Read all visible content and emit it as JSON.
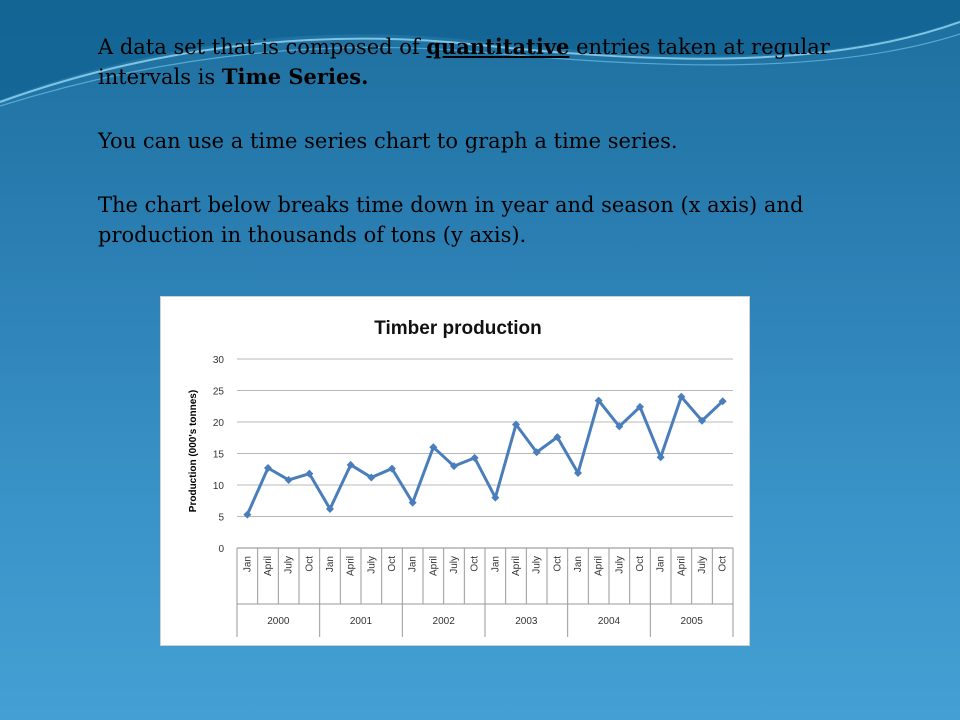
{
  "slide": {
    "para1": {
      "prefix": "A data set that is composed of ",
      "emph": "quantitative",
      "middle": " entries taken at regular intervals is ",
      "term": "Time Series."
    },
    "para2": "You can use a time series chart to graph a time series.",
    "para3": "The chart below breaks time down in year and season (x axis) and production in thousands of tons (y axis)."
  },
  "chart_data": {
    "type": "line",
    "title": "Timber production",
    "ylabel": "Production (000's tonnes)",
    "xlabel": "",
    "ylim": [
      0,
      30
    ],
    "yticks": [
      0,
      5,
      10,
      15,
      20,
      25,
      30
    ],
    "grid": true,
    "color": "#4a7ebb",
    "years": [
      "2000",
      "2001",
      "2002",
      "2003",
      "2004",
      "2005"
    ],
    "seasons": [
      "Jan",
      "April",
      "July",
      "Oct"
    ],
    "values": [
      5.3,
      12.7,
      10.8,
      11.8,
      6.2,
      13.2,
      11.2,
      12.6,
      7.2,
      16.0,
      13.0,
      14.3,
      8.0,
      19.6,
      15.2,
      17.6,
      11.9,
      23.4,
      19.3,
      22.4,
      14.4,
      24.0,
      20.2,
      23.3
    ]
  }
}
